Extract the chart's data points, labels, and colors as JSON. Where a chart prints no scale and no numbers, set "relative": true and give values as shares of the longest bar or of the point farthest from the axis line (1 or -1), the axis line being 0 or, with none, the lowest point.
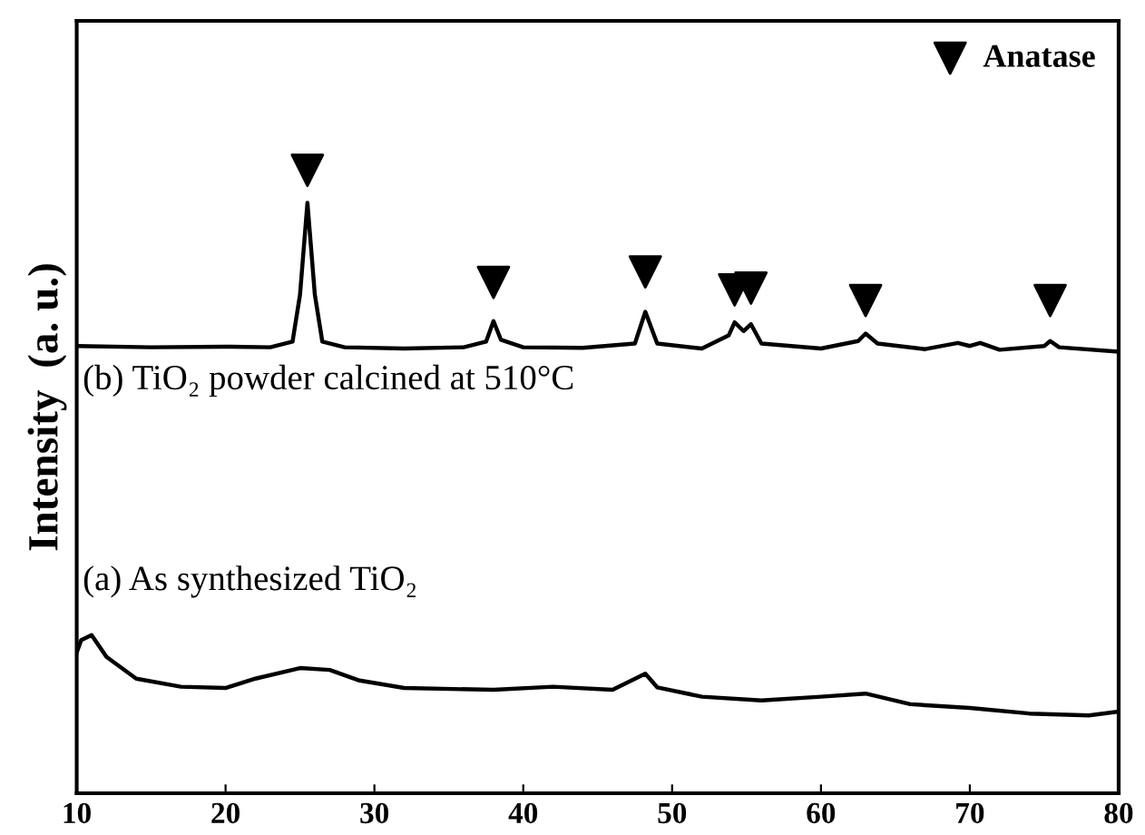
{
  "chart_data": {
    "type": "line",
    "ylabel": "Intensity  (a. u.)",
    "relative": true,
    "tick_labels": "x",
    "xlim": [
      10,
      80
    ],
    "xticks": [
      10,
      20,
      30,
      40,
      50,
      60,
      70,
      80
    ],
    "grid": false,
    "legend": "top right",
    "series": [
      {
        "name": "(b) TiO₂ powder calcined at 510°C",
        "color": "#000000",
        "marker": "none",
        "x": [
          10,
          15,
          20,
          23,
          24.5,
          25,
          25.5,
          26,
          26.5,
          28,
          32,
          36,
          37.5,
          38,
          38.5,
          40,
          44,
          47.5,
          48.2,
          49,
          52,
          53.8,
          54.2,
          54.8,
          55.3,
          56,
          60,
          62.5,
          63,
          63.8,
          67,
          69.2,
          70,
          70.7,
          72,
          75,
          75.4,
          76,
          80
        ],
        "values": [
          0.718,
          0.716,
          0.717,
          0.716,
          0.725,
          0.8,
          0.948,
          0.8,
          0.725,
          0.716,
          0.714,
          0.716,
          0.725,
          0.758,
          0.728,
          0.716,
          0.715,
          0.722,
          0.773,
          0.722,
          0.714,
          0.735,
          0.756,
          0.742,
          0.753,
          0.722,
          0.714,
          0.726,
          0.738,
          0.722,
          0.713,
          0.723,
          0.718,
          0.723,
          0.712,
          0.718,
          0.726,
          0.716,
          0.709
        ]
      },
      {
        "name": "(a) As synthesized TiO₂",
        "color": "#000000",
        "marker": "none",
        "x": [
          10,
          10.3,
          11,
          12,
          14,
          17,
          20,
          22,
          25,
          27,
          29,
          32,
          38,
          42,
          46,
          48.2,
          49,
          52,
          56,
          60,
          63,
          66,
          70,
          74,
          78,
          80
        ],
        "values": [
          0.226,
          0.246,
          0.254,
          0.219,
          0.184,
          0.171,
          0.169,
          0.184,
          0.201,
          0.198,
          0.181,
          0.169,
          0.166,
          0.171,
          0.166,
          0.192,
          0.17,
          0.155,
          0.149,
          0.155,
          0.16,
          0.143,
          0.137,
          0.128,
          0.125,
          0.131
        ]
      },
      {
        "name": "Anatase",
        "type": "scatter",
        "color": "#000000",
        "marker": "triangle",
        "x": [
          25.5,
          38,
          48.2,
          54.2,
          55.3,
          63,
          75.4
        ],
        "values": [
          1.0,
          0.82,
          0.837,
          0.808,
          0.811,
          0.791,
          0.791
        ]
      }
    ]
  }
}
